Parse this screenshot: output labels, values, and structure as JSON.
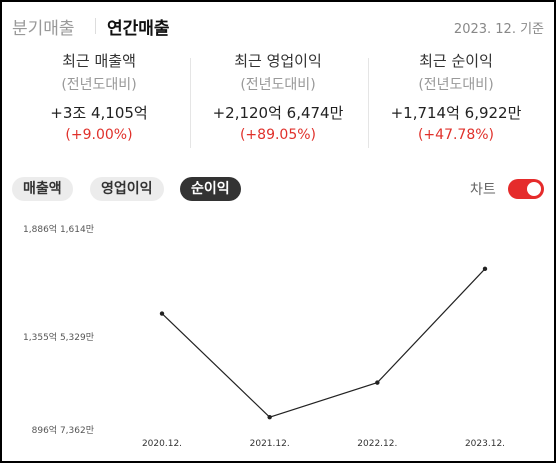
{
  "header": {
    "tabs": [
      {
        "label": "분기매출",
        "active": false
      },
      {
        "label": "연간매출",
        "active": true
      }
    ],
    "as_of": "2023. 12. 기준"
  },
  "stats": [
    {
      "title": "최근 매출액",
      "subtitle": "(전년도대비)",
      "value": "+3조 4,105억",
      "change": "(+9.00%)"
    },
    {
      "title": "최근 영업이익",
      "subtitle": "(전년도대비)",
      "value": "+2,120억 6,474만",
      "change": "(+89.05%)"
    },
    {
      "title": "최근 순이익",
      "subtitle": "(전년도대비)",
      "value": "+1,714억 6,922만",
      "change": "(+47.78%)"
    }
  ],
  "filters": [
    {
      "label": "매출액",
      "selected": false
    },
    {
      "label": "영업이익",
      "selected": false
    },
    {
      "label": "순이익",
      "selected": true
    }
  ],
  "chart_toggle": {
    "label": "차트",
    "on": true
  },
  "colors": {
    "accent_red": "#e52b2b",
    "change_red": "#e0312b",
    "line": "#222222"
  },
  "chart_data": {
    "type": "line",
    "title": "",
    "xlabel": "",
    "ylabel": "",
    "x": [
      "2020.12.",
      "2021.12.",
      "2022.12.",
      "2023.12."
    ],
    "series": [
      {
        "values": [
          1470,
          960,
          1130,
          1690
        ]
      }
    ],
    "ylim": [
      896.7362,
      1886.1614
    ],
    "yticks": [
      {
        "value": 1886.1614,
        "label": "1,886억 1,614만"
      },
      {
        "value": 1355.5329,
        "label": "1,355억 5,329만"
      },
      {
        "value": 896.7362,
        "label": "896억 7,362만"
      }
    ],
    "grid": false
  }
}
